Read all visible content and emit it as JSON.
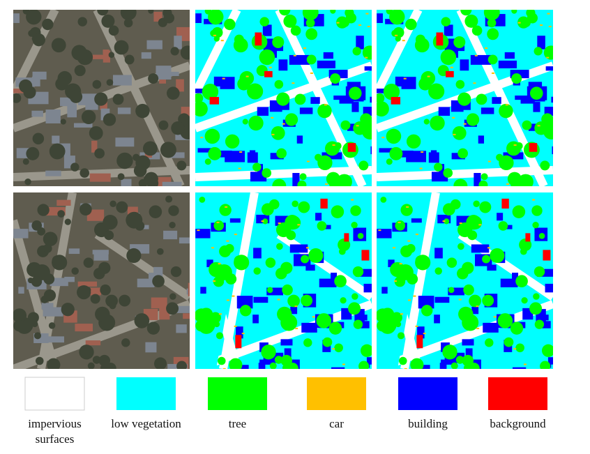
{
  "legend": {
    "items": [
      {
        "label": "impervious surfaces",
        "color": "#ffffff"
      },
      {
        "label": "low vegetation",
        "color": "#00ffff"
      },
      {
        "label": "tree",
        "color": "#00ff00"
      },
      {
        "label": "car",
        "color": "#ffc000"
      },
      {
        "label": "building",
        "color": "#0000ff"
      },
      {
        "label": "background",
        "color": "#ff0000"
      }
    ]
  }
}
